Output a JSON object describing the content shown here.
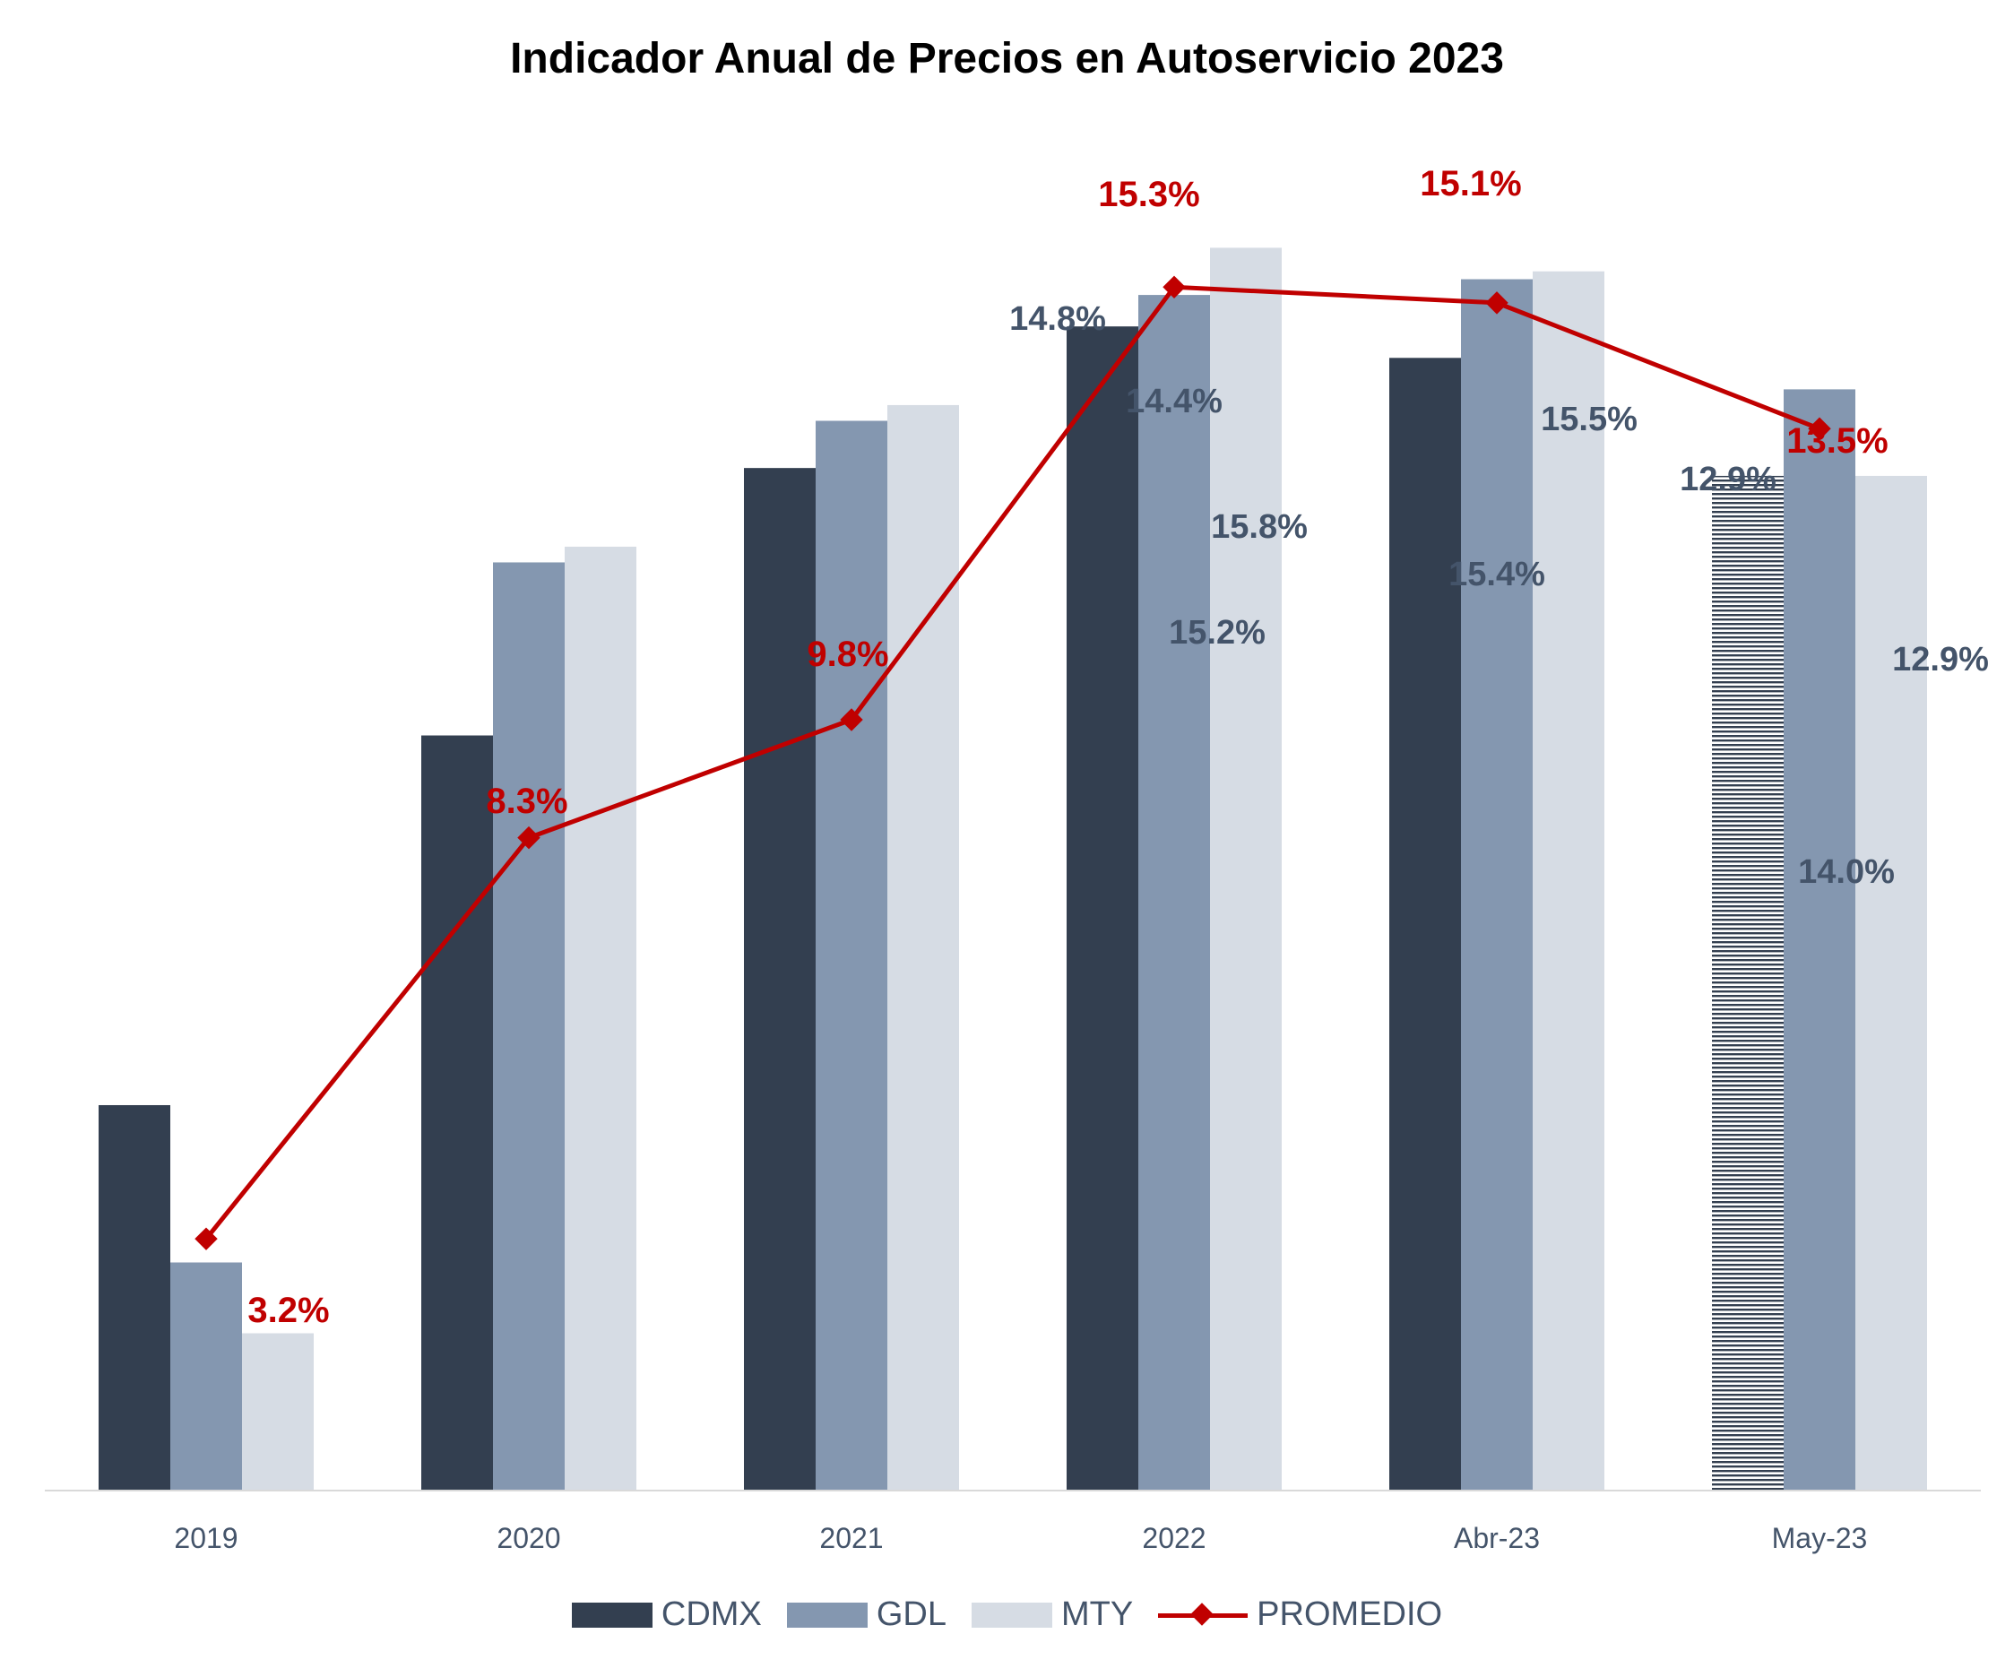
{
  "chart_data": {
    "type": "bar",
    "title": "Indicador Anual de Precios en Autoservicio 2023",
    "categories": [
      "2019",
      "2020",
      "2021",
      "2022",
      "Abr-23",
      "May-23"
    ],
    "series": [
      {
        "name": "CDMX",
        "type": "bar",
        "color": "#333F50",
        "values": [
          4.9,
          9.6,
          13.0,
          14.8,
          14.4,
          12.9
        ],
        "labels": [
          "",
          "",
          "",
          "14.8%",
          "14.4%",
          "12.9%"
        ]
      },
      {
        "name": "GDL",
        "type": "bar",
        "color": "#8497B0",
        "values": [
          2.9,
          11.8,
          13.6,
          15.2,
          15.4,
          14.0
        ],
        "labels": [
          "",
          "",
          "",
          "15.2%",
          "15.4%",
          "14.0%"
        ]
      },
      {
        "name": "MTY",
        "type": "bar",
        "color": "#D6DCE4",
        "values": [
          2.0,
          12.0,
          13.8,
          15.8,
          15.5,
          12.9
        ],
        "labels": [
          "",
          "",
          "",
          "15.8%",
          "15.5%",
          "12.9%"
        ]
      },
      {
        "name": "PROMEDIO",
        "type": "line",
        "color": "#C00000",
        "values": [
          3.2,
          8.3,
          9.8,
          15.3,
          15.1,
          13.5
        ],
        "labels": [
          "3.2%",
          "8.3%",
          "9.8%",
          "15.3%",
          "15.1%",
          "13.5%"
        ]
      }
    ],
    "ylim": [
      0,
      16.5
    ],
    "grid": false,
    "legend": "bottom"
  }
}
